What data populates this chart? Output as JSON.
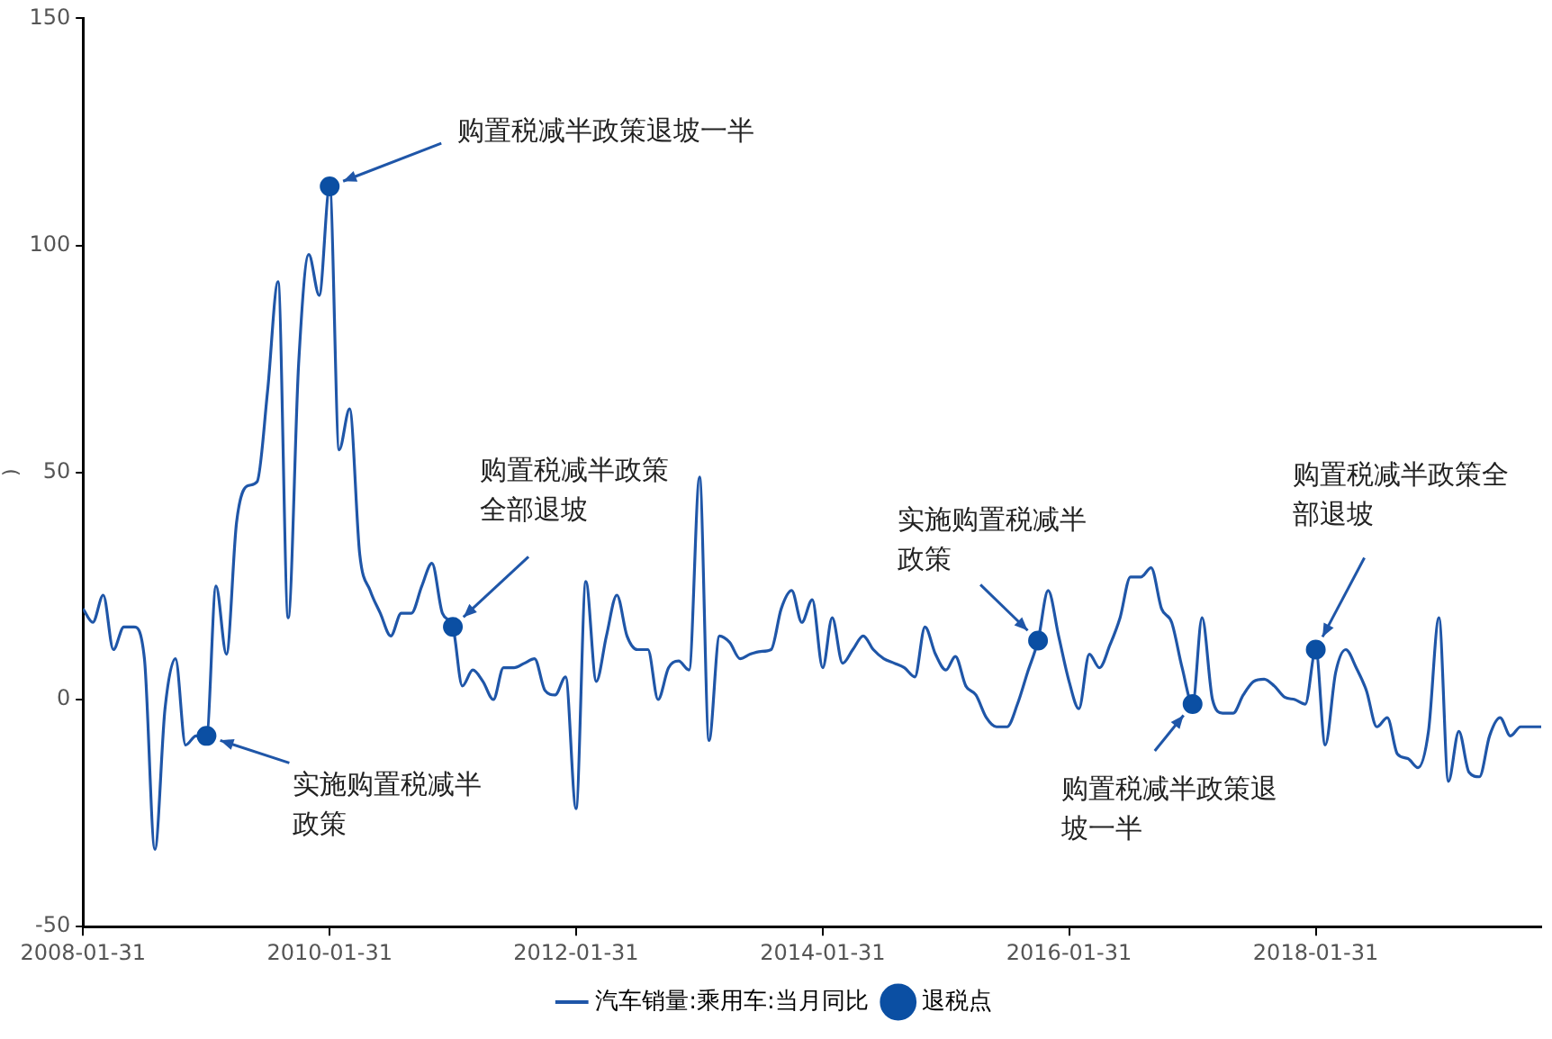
{
  "chart_data": {
    "type": "line",
    "ylabel": ")",
    "xlim": [
      "2008-01-31",
      "2019-11-30"
    ],
    "xticks": [
      "2008-01-31",
      "2010-01-31",
      "2012-01-31",
      "2014-01-31",
      "2016-01-31",
      "2018-01-31"
    ],
    "ylim": [
      -50,
      150
    ],
    "yticks": [
      -50,
      0,
      50,
      100,
      150
    ],
    "grid": false,
    "legend": "bottom",
    "marker": "none",
    "line_style": "solid",
    "series": [
      {
        "name": "汽车销量:乘用车:当月同比",
        "type": "line",
        "color": "#1f56a8",
        "x": [
          "2008-01-31",
          "2008-02-29",
          "2008-03-31",
          "2008-04-30",
          "2008-05-31",
          "2008-06-30",
          "2008-07-31",
          "2008-08-31",
          "2008-09-30",
          "2008-10-31",
          "2008-11-30",
          "2008-12-31",
          "2009-01-31",
          "2009-02-28",
          "2009-03-31",
          "2009-04-30",
          "2009-05-31",
          "2009-06-30",
          "2009-07-31",
          "2009-08-31",
          "2009-09-30",
          "2009-10-31",
          "2009-11-30",
          "2009-12-31",
          "2010-01-31",
          "2010-02-28",
          "2010-03-31",
          "2010-04-30",
          "2010-05-31",
          "2010-06-30",
          "2010-07-31",
          "2010-08-31",
          "2010-09-30",
          "2010-10-31",
          "2010-11-30",
          "2010-12-31",
          "2011-01-31",
          "2011-02-28",
          "2011-03-31",
          "2011-04-30",
          "2011-05-31",
          "2011-06-30",
          "2011-07-31",
          "2011-08-31",
          "2011-09-30",
          "2011-10-31",
          "2011-11-30",
          "2011-12-31",
          "2012-01-31",
          "2012-02-29",
          "2012-03-31",
          "2012-04-30",
          "2012-05-31",
          "2012-06-30",
          "2012-07-31",
          "2012-08-31",
          "2012-09-30",
          "2012-10-31",
          "2012-11-30",
          "2012-12-31",
          "2013-01-31",
          "2013-02-28",
          "2013-03-31",
          "2013-04-30",
          "2013-05-31",
          "2013-06-30",
          "2013-07-31",
          "2013-08-31",
          "2013-09-30",
          "2013-10-31",
          "2013-11-30",
          "2013-12-31",
          "2014-01-31",
          "2014-02-28",
          "2014-03-31",
          "2014-04-30",
          "2014-05-31",
          "2014-06-30",
          "2014-07-31",
          "2014-08-31",
          "2014-09-30",
          "2014-10-31",
          "2014-11-30",
          "2014-12-31",
          "2015-01-31",
          "2015-02-28",
          "2015-03-31",
          "2015-04-30",
          "2015-05-31",
          "2015-06-30",
          "2015-07-31",
          "2015-08-31",
          "2015-09-30",
          "2015-10-31",
          "2015-11-30",
          "2015-12-31",
          "2016-01-31",
          "2016-02-29",
          "2016-03-31",
          "2016-04-30",
          "2016-05-31",
          "2016-06-30",
          "2016-07-31",
          "2016-08-31",
          "2016-09-30",
          "2016-10-31",
          "2016-11-30",
          "2016-12-31",
          "2017-01-31",
          "2017-02-28",
          "2017-03-31",
          "2017-04-30",
          "2017-05-31",
          "2017-06-30",
          "2017-07-31",
          "2017-08-31",
          "2017-09-30",
          "2017-10-31",
          "2017-11-30",
          "2017-12-31",
          "2018-01-31",
          "2018-02-28",
          "2018-03-31",
          "2018-04-30",
          "2018-05-31",
          "2018-06-30",
          "2018-07-31",
          "2018-08-31",
          "2018-09-30",
          "2018-10-31",
          "2018-11-30",
          "2018-12-31",
          "2019-01-31",
          "2019-02-28",
          "2019-03-31",
          "2019-04-30",
          "2019-05-31",
          "2019-06-30",
          "2019-07-31",
          "2019-08-31",
          "2019-09-30",
          "2019-10-31",
          "2019-11-30"
        ],
        "values": [
          20,
          17,
          23,
          11,
          16,
          16,
          9,
          -33,
          -2,
          9,
          -10,
          -8,
          -8,
          25,
          10,
          39,
          47,
          48,
          68,
          92,
          18,
          74,
          98,
          89,
          113,
          55,
          64,
          32,
          24,
          19,
          14,
          19,
          19,
          25,
          30,
          19,
          16,
          3,
          6.5,
          4,
          0,
          7,
          7,
          8,
          9,
          2,
          1,
          5,
          -24,
          26,
          4,
          14,
          23,
          14,
          11,
          11,
          0,
          7,
          8.5,
          6.5,
          49,
          -9,
          14,
          12.6,
          9,
          10,
          10.6,
          11,
          20,
          24,
          17,
          22,
          7,
          18,
          8,
          11,
          14,
          11,
          9,
          8,
          7,
          5,
          16,
          10,
          6.5,
          9.5,
          3,
          1,
          -4,
          -6,
          -6,
          -1,
          6,
          13,
          24,
          14,
          4,
          -2,
          10,
          7,
          12,
          18,
          27,
          27,
          29,
          20,
          17,
          7,
          -1,
          18,
          0,
          -3,
          -3,
          1,
          4,
          4.5,
          3,
          0.5,
          0,
          -1,
          11,
          -10,
          6,
          11,
          7,
          2,
          -6,
          -4,
          -12,
          -13,
          -15,
          -7,
          18,
          -18,
          -7,
          -16,
          -17,
          -8,
          -4,
          -8,
          -6,
          -6,
          -6
        ]
      },
      {
        "name": "退税点",
        "type": "scatter",
        "marker": "circle",
        "color": "#0b4fa3",
        "x": [
          "2009-01-31",
          "2010-01-31",
          "2011-01-31",
          "2015-10-31",
          "2017-01-31",
          "2018-01-31"
        ],
        "values": [
          -8,
          113,
          16,
          13,
          -1,
          11
        ]
      }
    ],
    "annotations": [
      {
        "text": "实施购置税减半政策",
        "x": "2009-01-31",
        "y": -8
      },
      {
        "text": "购置税减半政策退坡一半",
        "x": "2010-01-31",
        "y": 113
      },
      {
        "text": "购置税减半政策全部退坡",
        "x": "2011-01-31",
        "y": 16
      },
      {
        "text": "实施购置税减半政策",
        "x": "2015-10-31",
        "y": 13
      },
      {
        "text": "购置税减半政策退坡一半",
        "x": "2017-01-31",
        "y": -1
      },
      {
        "text": "购置税减半政策全部退坡",
        "x": "2018-01-31",
        "y": 11
      }
    ]
  }
}
